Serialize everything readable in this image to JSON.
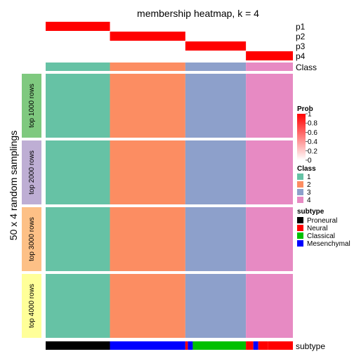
{
  "chart_data": {
    "type": "heatmap",
    "title": "membership heatmap, k = 4",
    "ylabel": "50 x 4 random samplings",
    "row_annotations": [
      "p1",
      "p2",
      "p3",
      "p4",
      "Class"
    ],
    "bottom_annotation": "subtype",
    "row_groups": [
      "top 1000 rows",
      "top 2000 rows",
      "top 3000 rows",
      "top 4000 rows"
    ],
    "row_group_colors": [
      "#7fc97f",
      "#beaed4",
      "#fdc086",
      "#ffff99"
    ],
    "class_segments": [
      {
        "class": 1,
        "start": 0.0,
        "end": 0.26
      },
      {
        "class": 2,
        "start": 0.26,
        "end": 0.565
      },
      {
        "class": 3,
        "start": 0.565,
        "end": 0.81
      },
      {
        "class": 4,
        "start": 0.81,
        "end": 1.0
      }
    ],
    "subtype_segments": [
      {
        "subtype": "Proneural",
        "start": 0.0,
        "end": 0.26
      },
      {
        "subtype": "Mesenchymal",
        "start": 0.26,
        "end": 0.565
      },
      {
        "subtype": "Neural",
        "start": 0.565,
        "end": 0.575
      },
      {
        "subtype": "Mesenchymal",
        "start": 0.575,
        "end": 0.595
      },
      {
        "subtype": "Classical",
        "start": 0.595,
        "end": 0.81
      },
      {
        "subtype": "Neural",
        "start": 0.81,
        "end": 0.84
      },
      {
        "subtype": "Mesenchymal",
        "start": 0.84,
        "end": 0.86
      },
      {
        "subtype": "Neural",
        "start": 0.86,
        "end": 0.9
      },
      {
        "subtype": "Neural",
        "start": 0.9,
        "end": 1.0
      }
    ],
    "prob_legend": {
      "title": "Prob",
      "ticks": [
        "1",
        "0.8",
        "0.6",
        "0.4",
        "0.2",
        "0"
      ]
    },
    "class_legend": {
      "title": "Class",
      "items": [
        {
          "label": "1",
          "color": "#66c2a5"
        },
        {
          "label": "2",
          "color": "#fc8d62"
        },
        {
          "label": "3",
          "color": "#8da0cb"
        },
        {
          "label": "4",
          "color": "#e78ac3"
        }
      ]
    },
    "subtype_legend": {
      "title": "subtype",
      "items": [
        {
          "label": "Proneural",
          "color": "#000000"
        },
        {
          "label": "Neural",
          "color": "#ff0000"
        },
        {
          "label": "Classical",
          "color": "#00c000"
        },
        {
          "label": "Mesenchymal",
          "color": "#0000ff"
        }
      ]
    }
  },
  "colors": {
    "prob_high": "#ff0000",
    "prob_low": "#ffffff",
    "separator": "#ffffff"
  }
}
